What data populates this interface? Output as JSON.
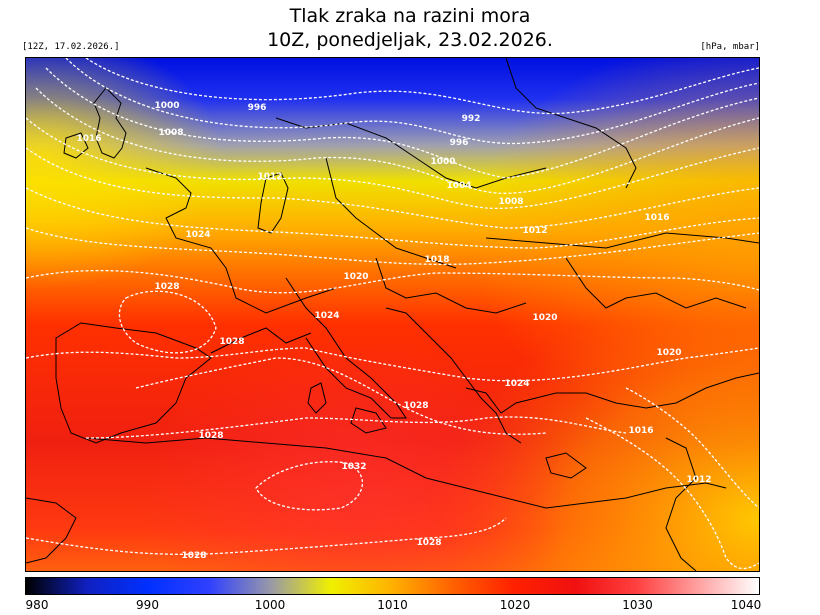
{
  "title_line1": "Tlak zraka na razini mora",
  "title_line2": "10Z, ponedjeljak, 23.02.2026.",
  "run_label": "[12Z, 17.02.2026.]",
  "units_label": "[hPa, mbar]",
  "colorbar": {
    "min": 980,
    "max": 1040,
    "ticks": [
      "980",
      "990",
      "1000",
      "1010",
      "1020",
      "1030",
      "1040"
    ],
    "colors": [
      "#000000",
      "#1020c0",
      "#0030ff",
      "#3040ff",
      "#9898a8",
      "#f0f000",
      "#ffb000",
      "#ff6000",
      "#ff2000",
      "#f01010",
      "#ff4040",
      "#ffa0a0",
      "#ffffff"
    ]
  },
  "isobars": [
    {
      "label": "1000"
    },
    {
      "label": "996"
    },
    {
      "label": "992"
    },
    {
      "label": "1008"
    },
    {
      "label": "996"
    },
    {
      "label": "1016"
    },
    {
      "label": "1000"
    },
    {
      "label": "1012"
    },
    {
      "label": "1004"
    },
    {
      "label": "1008"
    },
    {
      "label": "1016"
    },
    {
      "label": "1024"
    },
    {
      "label": "1012"
    },
    {
      "label": "1018"
    },
    {
      "label": "1020"
    },
    {
      "label": "1028"
    },
    {
      "label": "1024"
    },
    {
      "label": "1020"
    },
    {
      "label": "1028"
    },
    {
      "label": "1020"
    },
    {
      "label": "1024"
    },
    {
      "label": "1028"
    },
    {
      "label": "1016"
    },
    {
      "label": "1028"
    },
    {
      "label": "1032"
    },
    {
      "label": "1012"
    },
    {
      "label": "1028"
    },
    {
      "label": "1028"
    }
  ]
}
